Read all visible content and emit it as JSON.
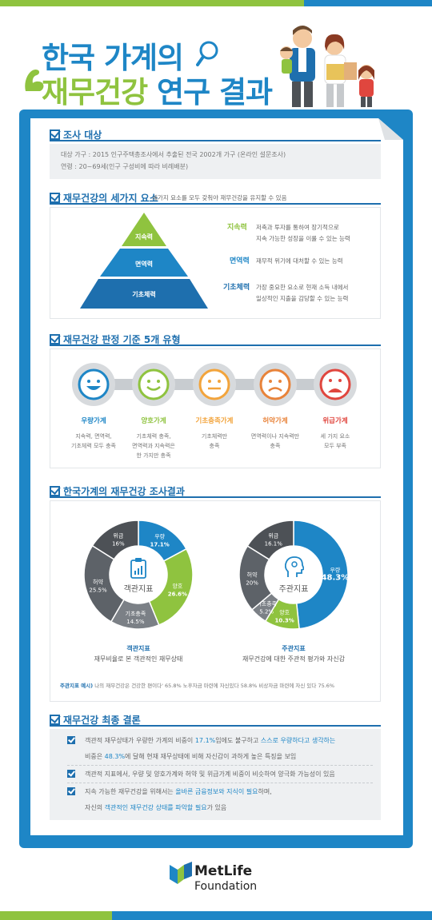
{
  "colors": {
    "brand_blue": "#1e86c6",
    "dark_blue": "#1e6fae",
    "green": "#8fc33f",
    "gray_dark": "#4d5156",
    "gray_mid": "#7b8086"
  },
  "title": {
    "line1": "한국 가계의",
    "line2_green": "재무건강",
    "line2_rest": " 연구 결과"
  },
  "survey": {
    "heading": "조사 대상",
    "line1": "대상 가구 : 2015 인구주택총조사에서 추출된 전국 2002개 가구 (온라인 설문조사)",
    "line2": "연령 : 20~69세(인구 구성비에 따라 비례배분)"
  },
  "elements": {
    "heading": "재무건강의 세가지 요소",
    "subtitle": "세가지 요소를 모두 갖춰야 재무건강을 유지할 수 있음",
    "pyramid": [
      "지속력",
      "면역력",
      "기초체력"
    ],
    "factors": [
      {
        "name": "지속력",
        "desc1": "저축과 투자를 통하여 장기적으로",
        "desc2": "지속 가능한 성장을 이룰 수 있는 능력",
        "color": "#8fc33f"
      },
      {
        "name": "면역력",
        "desc1": "재무적 위기에 대처할 수 있는 능력",
        "desc2": "",
        "color": "#1e86c6"
      },
      {
        "name": "기초체력",
        "desc1": "가장 중요한 요소로 현재 소득 내에서",
        "desc2": "일상적인 지출을 감당할 수 있는 능력",
        "color": "#1e6fae"
      }
    ]
  },
  "types": {
    "heading": "재무건강 판정 기준 5개 유형",
    "items": [
      {
        "label": "우량가계",
        "desc": [
          "지속력, 면역력,",
          "기초체력 모두 충족"
        ],
        "color": "#1e86c6",
        "face": "very-happy-face-icon"
      },
      {
        "label": "양호가계",
        "desc": [
          "기초체력 충족,",
          "면역력과 지속력은",
          "한 가지만 충족"
        ],
        "color": "#8fc33f",
        "face": "happy-face-icon"
      },
      {
        "label": "기초충족가계",
        "desc": [
          "기초체력만",
          "충족"
        ],
        "color": "#f2a43c",
        "face": "neutral-face-icon"
      },
      {
        "label": "허약가계",
        "desc": [
          "면역력이나 지속력만",
          "충족"
        ],
        "color": "#e8833a",
        "face": "sad-face-icon"
      },
      {
        "label": "위급가계",
        "desc": [
          "세 가지 요소",
          "모두 부족"
        ],
        "color": "#e0463e",
        "face": "very-sad-face-icon"
      }
    ]
  },
  "results": {
    "heading": "한국가계의 재무건강 조사결과",
    "example_label": "주관지표 예시)",
    "example_text": "나의 재무건강은 건강한 편이다' 65.8%    노후자금 마련에 자신있다 58.8%    비상자금 마련에 자신 있다 75.6%"
  },
  "chart_data": [
    {
      "type": "pie",
      "title": "객관지표",
      "subtitle": "재무비율로 본 객관적인 재무상태",
      "center_label": "객관지표",
      "categories": [
        "우량",
        "양호",
        "기초충족",
        "허약",
        "위급"
      ],
      "values": [
        17.1,
        26.6,
        14.5,
        25.5,
        16
      ],
      "labels": [
        "17.1%",
        "26.6%",
        "14.5%",
        "25.5%",
        "16%"
      ],
      "colors": [
        "#1e86c6",
        "#8fc33f",
        "#7b8086",
        "#5d6268",
        "#4d5156"
      ]
    },
    {
      "type": "pie",
      "title": "주관지표",
      "subtitle": "재무건강에 대한 주관적 평가와 자신감",
      "center_label": "주관지표",
      "categories": [
        "우량",
        "양호",
        "기초충족",
        "허약",
        "위급"
      ],
      "values": [
        48.3,
        10.3,
        5.2,
        20,
        16.1
      ],
      "labels": [
        "48.3%",
        "10.3%",
        "5.2%",
        "20%",
        "16.1%"
      ],
      "colors": [
        "#1e86c6",
        "#8fc33f",
        "#7b8086",
        "#5d6268",
        "#4d5156"
      ]
    }
  ],
  "conclusion": {
    "heading": "재무건강 최종 결론",
    "c1_a": "객관적 재무상태가 우량한 가계의 비중이 ",
    "c1_b": "17.1%",
    "c1_c": "임에도 불구하고 ",
    "c1_d": "스스로 우량하다고 생각하는",
    "c1_e": "비중은 ",
    "c1_f": "48.3%",
    "c1_g": "에 달해 현재 재무상태에 비해 자신감이 과하게 높은 특징을 보임",
    "c2": "객관적 지표에서, 우량 및 양호가계와 허약 및 위급가계 비중이 비슷하여 양극화 가능성이 있음",
    "c3_a": "지속 가능한 재무건강을 위해서는 ",
    "c3_b": "올바른 금융정보와 지식이 필요",
    "c3_c": "하며,",
    "c3_d": "자신의 ",
    "c3_e": "객관적인 재무건강 상태를 파악할 필요",
    "c3_f": "가 있음"
  },
  "logo": {
    "name": "MetLife",
    "sub": "Foundation"
  }
}
